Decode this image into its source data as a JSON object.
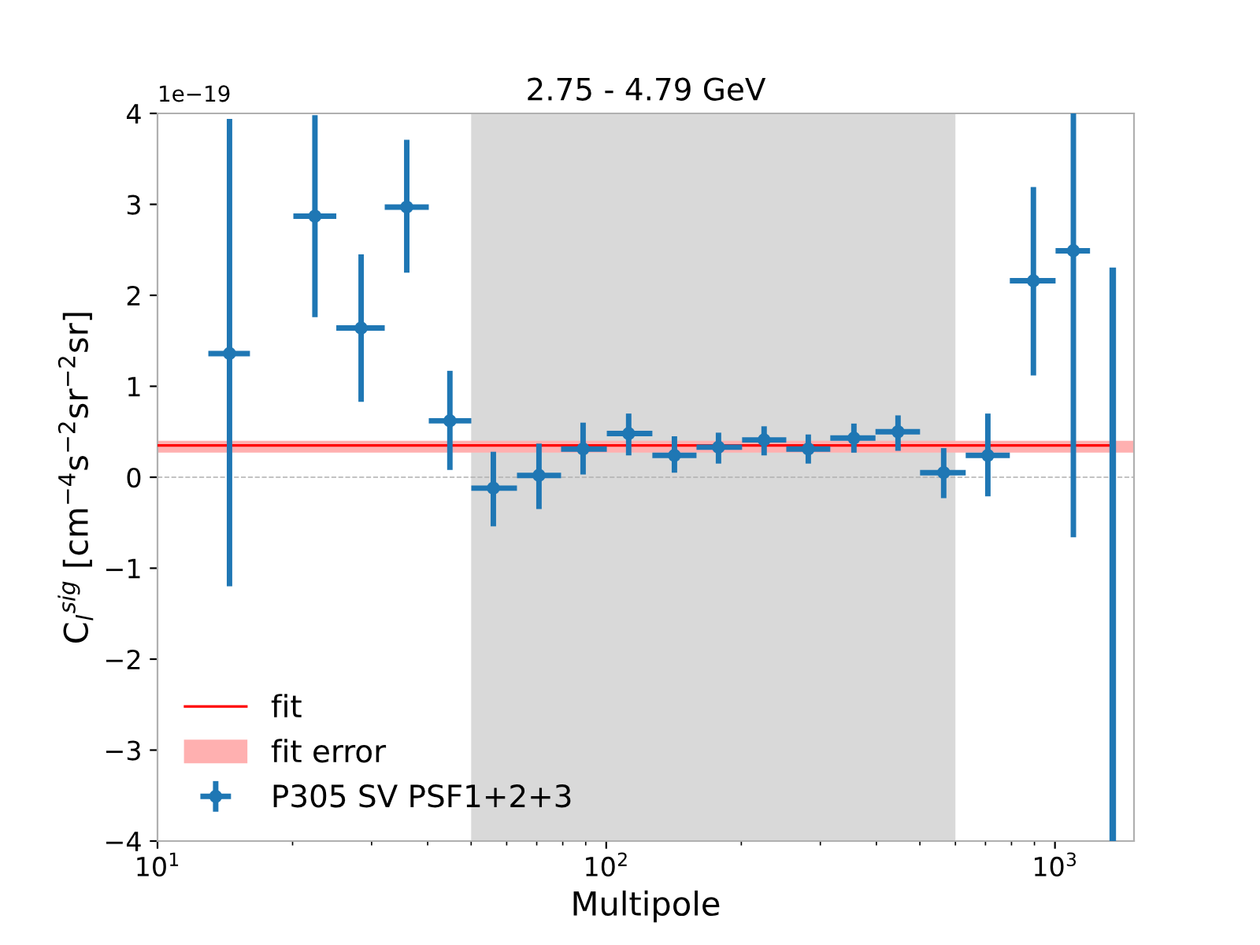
{
  "chart_data": {
    "type": "scatter",
    "title": "2.75 - 4.79 GeV",
    "xlabel": "Multipole",
    "ylabel": "C$_{l}$$^{sig}$ [cm$^{−4}$s$^{−2}$sr$^{−2}$sr]",
    "annotations": [
      "1e−19"
    ],
    "log": "x",
    "xlim": [
      10,
      1500
    ],
    "xticks": [
      {
        "value": 10,
        "label": "10$^{1}$"
      },
      {
        "value": 100,
        "label": "10$^{2}$"
      },
      {
        "value": 1000,
        "label": "10$^{3}$"
      }
    ],
    "ylim": [
      -4,
      4
    ],
    "yticks": [
      -4,
      -3,
      -2,
      -1,
      0,
      1,
      2,
      3,
      4
    ],
    "grid": false,
    "legend": "bottom left",
    "bands": [
      {
        "axis": "x",
        "from": 50,
        "to": 600,
        "color": "#d9d9d9"
      },
      {
        "axis": "y",
        "from": 0.27,
        "to": 0.4,
        "color": "#ffb0b0",
        "label": "fit error"
      }
    ],
    "ref_lines": [
      {
        "axis": "y",
        "value": 0,
        "color": "#b0b0b0",
        "line_style": "dashed"
      }
    ],
    "series": [
      {
        "name": "fit",
        "type": "line",
        "marker": "none",
        "color": "#ff0000",
        "x": [
          10,
          1345
        ],
        "values": [
          0.35,
          0.35
        ]
      },
      {
        "name": "P305 SV PSF1+2+3",
        "marker": "circle",
        "color": "#1f77b4",
        "x": [
          14.47,
          22.43,
          28.43,
          35.93,
          44.83,
          56.03,
          70.81,
          88.8,
          112.2,
          141.9,
          177.9,
          224.8,
          282.0,
          356.4,
          446.9,
          564.9,
          708.6,
          895.2,
          1099
        ],
        "values": [
          1.36,
          2.87,
          1.64,
          2.97,
          0.62,
          -0.12,
          0.02,
          0.31,
          0.48,
          0.24,
          0.33,
          0.41,
          0.31,
          0.43,
          0.5,
          0.05,
          0.24,
          2.16,
          2.49
        ],
        "errors": [
          [
            -1.2,
            3.94
          ],
          [
            1.76,
            3.98
          ],
          [
            0.83,
            2.45
          ],
          [
            2.25,
            3.71
          ],
          [
            0.08,
            1.17
          ],
          [
            -0.54,
            0.28
          ],
          [
            -0.35,
            0.37
          ],
          [
            0.03,
            0.6
          ],
          [
            0.24,
            0.7
          ],
          [
            0.05,
            0.45
          ],
          [
            0.15,
            0.49
          ],
          [
            0.24,
            0.56
          ],
          [
            0.15,
            0.47
          ],
          [
            0.27,
            0.59
          ],
          [
            0.29,
            0.68
          ],
          [
            -0.23,
            0.32
          ],
          [
            -0.21,
            0.7
          ],
          [
            1.12,
            3.19
          ],
          [
            -0.66,
            4.0
          ]
        ],
        "xerrors": [
          [
            12.98,
            16.07
          ],
          [
            20.08,
            25.03
          ],
          [
            25.03,
            32.09
          ],
          [
            32.09,
            40.23
          ],
          [
            40.23,
            50.04
          ],
          [
            50.04,
            63.25
          ],
          [
            63.25,
            79.31
          ],
          [
            79.31,
            100.3
          ],
          [
            100.3,
            126.7
          ],
          [
            126.7,
            158.9
          ],
          [
            158.9,
            200.8
          ],
          [
            200.8,
            251.9
          ],
          [
            251.9,
            315.7
          ],
          [
            315.7,
            398.1
          ],
          [
            398.1,
            500.4
          ],
          [
            500.4,
            632.5
          ],
          [
            632.5,
            793.2
          ],
          [
            793.2,
            1003
          ],
          [
            1003,
            1197
          ]
        ]
      },
      {
        "type": "line",
        "marker": "none",
        "color": "#1f77b4",
        "x": [
          1345,
          1345
        ],
        "values": [
          -4,
          2.27
        ]
      }
    ]
  }
}
